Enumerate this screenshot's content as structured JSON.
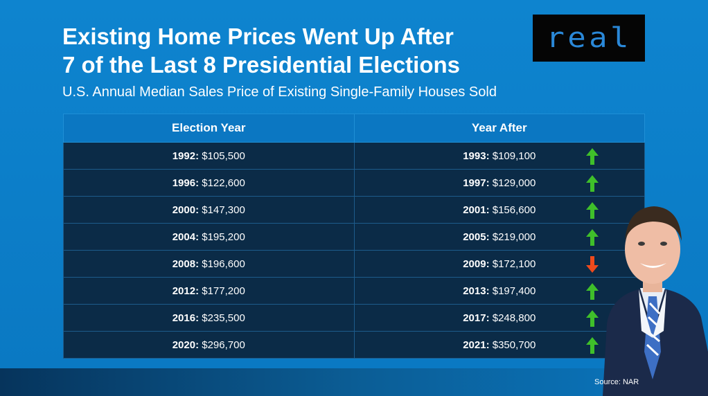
{
  "header": {
    "title_line1": "Existing Home Prices Went Up After",
    "title_line2": "7 of the Last 8 Presidential Elections",
    "subtitle": "U.S. Annual Median Sales Price of Existing Single-Family Houses Sold"
  },
  "logo": {
    "text": "real"
  },
  "table": {
    "columns": [
      "Election Year",
      "Year After"
    ],
    "rows": [
      {
        "election_year": "1992",
        "election_price": "$105,500",
        "after_year": "1993",
        "after_price": "$109,100",
        "trend": "up"
      },
      {
        "election_year": "1996",
        "election_price": "$122,600",
        "after_year": "1997",
        "after_price": "$129,000",
        "trend": "up"
      },
      {
        "election_year": "2000",
        "election_price": "$147,300",
        "after_year": "2001",
        "after_price": "$156,600",
        "trend": "up"
      },
      {
        "election_year": "2004",
        "election_price": "$195,200",
        "after_year": "2005",
        "after_price": "$219,000",
        "trend": "up"
      },
      {
        "election_year": "2008",
        "election_price": "$196,600",
        "after_year": "2009",
        "after_price": "$172,100",
        "trend": "down"
      },
      {
        "election_year": "2012",
        "election_price": "$177,200",
        "after_year": "2013",
        "after_price": "$197,400",
        "trend": "up"
      },
      {
        "election_year": "2016",
        "election_price": "$235,500",
        "after_year": "2017",
        "after_price": "$248,800",
        "trend": "up"
      },
      {
        "election_year": "2020",
        "election_price": "$296,700",
        "after_year": "2021",
        "after_price": "$350,700",
        "trend": "up"
      }
    ]
  },
  "footer": {
    "source": "Source: NAR"
  },
  "colors": {
    "background": "#0a7bc6",
    "row_background": "#0b2b47",
    "up_arrow": "#3fbf2a",
    "down_arrow": "#ef4a1c",
    "logo_text": "#2a88d8"
  }
}
